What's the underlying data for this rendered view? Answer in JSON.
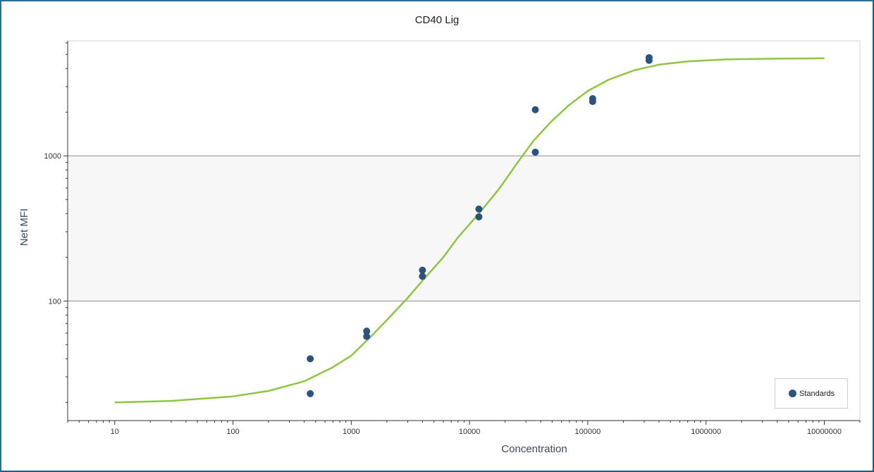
{
  "chart_data": {
    "type": "scatter",
    "title": "CD40 Lig",
    "xlabel": "Concentration",
    "ylabel": "Net MFI",
    "x_scale": "log",
    "y_scale": "log",
    "xlim": [
      4,
      20000000
    ],
    "ylim": [
      15,
      6200
    ],
    "x_tick_labels": [
      "10",
      "100",
      "1000",
      "10000",
      "100000",
      "1000000",
      "10000000"
    ],
    "x_tick_values": [
      10,
      100,
      1000,
      10000,
      100000,
      1000000,
      10000000
    ],
    "y_tick_labels": [
      "100",
      "1000"
    ],
    "y_tick_values": [
      100,
      1000
    ],
    "shaded_band": {
      "y_from": 100,
      "y_to": 1000,
      "color": "#f7f7f7"
    },
    "grid": "horizontal at y ticks",
    "legend_position": "bottom-right",
    "series": [
      {
        "name": "Standards",
        "kind": "points",
        "color": "#2c5282",
        "points": [
          {
            "x": 450,
            "y": 40
          },
          {
            "x": 450,
            "y": 23
          },
          {
            "x": 1350,
            "y": 62
          },
          {
            "x": 1350,
            "y": 57
          },
          {
            "x": 4000,
            "y": 163
          },
          {
            "x": 4000,
            "y": 148
          },
          {
            "x": 12000,
            "y": 430
          },
          {
            "x": 12000,
            "y": 380
          },
          {
            "x": 36000,
            "y": 2080
          },
          {
            "x": 36000,
            "y": 1060
          },
          {
            "x": 110000,
            "y": 2480
          },
          {
            "x": 110000,
            "y": 2370
          },
          {
            "x": 330000,
            "y": 4750
          },
          {
            "x": 330000,
            "y": 4550
          }
        ]
      },
      {
        "kind": "curve",
        "color": "#8dc63f",
        "curve": [
          {
            "x": 10,
            "y": 20
          },
          {
            "x": 30,
            "y": 20.5
          },
          {
            "x": 100,
            "y": 22
          },
          {
            "x": 200,
            "y": 24
          },
          {
            "x": 400,
            "y": 28
          },
          {
            "x": 700,
            "y": 35
          },
          {
            "x": 1000,
            "y": 42
          },
          {
            "x": 1500,
            "y": 58
          },
          {
            "x": 2000,
            "y": 74
          },
          {
            "x": 3000,
            "y": 105
          },
          {
            "x": 4000,
            "y": 138
          },
          {
            "x": 6000,
            "y": 200
          },
          {
            "x": 8000,
            "y": 275
          },
          {
            "x": 12000,
            "y": 400
          },
          {
            "x": 18000,
            "y": 600
          },
          {
            "x": 25000,
            "y": 880
          },
          {
            "x": 35000,
            "y": 1280
          },
          {
            "x": 50000,
            "y": 1750
          },
          {
            "x": 70000,
            "y": 2250
          },
          {
            "x": 100000,
            "y": 2800
          },
          {
            "x": 150000,
            "y": 3350
          },
          {
            "x": 250000,
            "y": 3900
          },
          {
            "x": 400000,
            "y": 4250
          },
          {
            "x": 700000,
            "y": 4480
          },
          {
            "x": 1500000,
            "y": 4620
          },
          {
            "x": 4000000,
            "y": 4680
          },
          {
            "x": 10000000,
            "y": 4700
          }
        ]
      }
    ]
  }
}
